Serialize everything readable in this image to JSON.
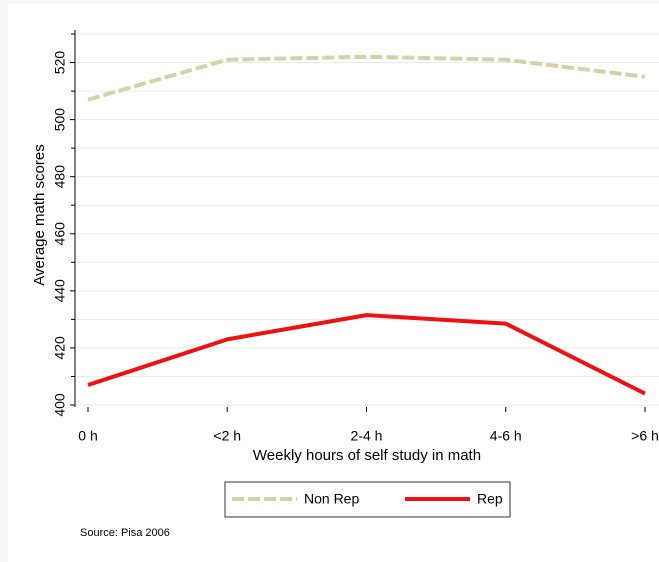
{
  "chart_data": {
    "type": "line",
    "x_label": "Weekly hours of self study in math",
    "y_label": "Average math scores",
    "categories": [
      "0 h",
      "<2 h",
      "2-4 h",
      "4-6 h",
      ">6 h"
    ],
    "series": [
      {
        "name": "Non Rep",
        "color": "#d6d1a8",
        "dash": true,
        "values": [
          507,
          521,
          522,
          521,
          515
        ]
      },
      {
        "name": "Rep",
        "color": "#ee1111",
        "dash": false,
        "values": [
          407,
          423,
          431.5,
          428.5,
          404
        ]
      }
    ],
    "ylim": [
      400,
      530
    ],
    "yticks": [
      400,
      420,
      440,
      460,
      480,
      500,
      520
    ],
    "yminorticks": [
      410,
      430,
      450,
      470,
      490,
      510,
      530
    ],
    "grid": true,
    "legend": "bottom",
    "note": "Source: Pisa 2006"
  }
}
